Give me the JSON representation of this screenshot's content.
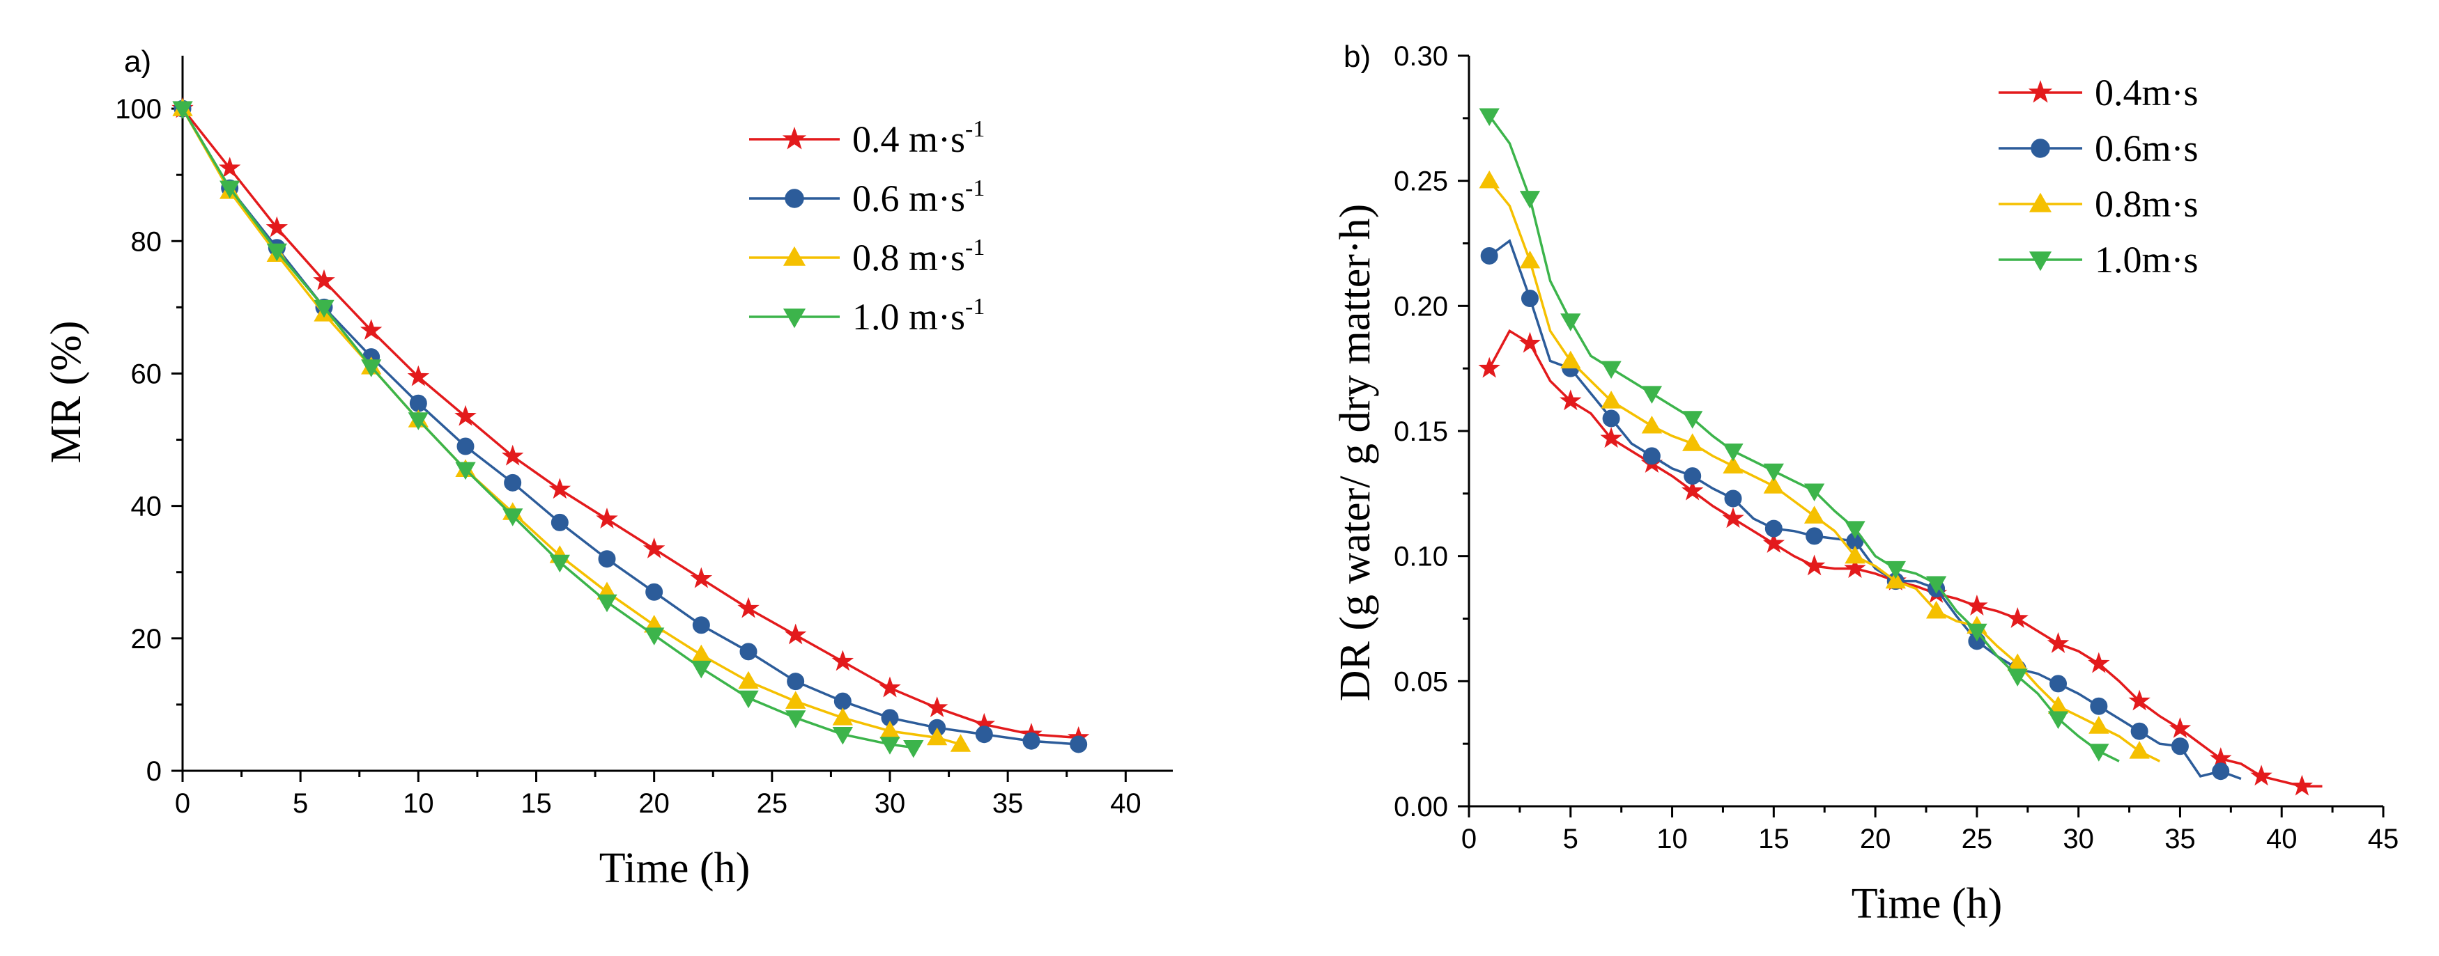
{
  "chart_data": [
    {
      "type": "line",
      "panel_label": "a)",
      "xlabel": "Time (h)",
      "ylabel": "MR (%)",
      "xlim": [
        0,
        42
      ],
      "ylim": [
        0,
        108
      ],
      "xticks": [
        0,
        5,
        10,
        15,
        20,
        25,
        30,
        35,
        40
      ],
      "yticks": [
        0,
        20,
        40,
        60,
        80,
        100
      ],
      "legend_position": "top-right",
      "series": [
        {
          "name": "0.4 m·s",
          "sup": "-1",
          "color": "#e31a1c",
          "marker": "star",
          "x": [
            0,
            2,
            4,
            6,
            8,
            10,
            12,
            14,
            16,
            18,
            20,
            22,
            24,
            26,
            28,
            30,
            32,
            34,
            36,
            38
          ],
          "y": [
            100,
            91,
            82,
            74,
            66.5,
            59.5,
            53.5,
            47.5,
            42.5,
            38,
            33.5,
            29,
            24.5,
            20.5,
            16.5,
            12.5,
            9.5,
            7,
            5.5,
            5
          ]
        },
        {
          "name": "0.6 m·s",
          "sup": "-1",
          "color": "#2c5c9a",
          "marker": "circle",
          "x": [
            0,
            2,
            4,
            6,
            8,
            10,
            12,
            14,
            16,
            18,
            20,
            22,
            24,
            26,
            28,
            30,
            32,
            34,
            36,
            38
          ],
          "y": [
            100,
            88,
            79,
            70,
            62.5,
            55.5,
            49,
            43.5,
            37.5,
            32,
            27,
            22,
            18,
            13.5,
            10.5,
            8,
            6.5,
            5.5,
            4.5,
            4
          ]
        },
        {
          "name": "0.8 m·s",
          "sup": "-1",
          "color": "#f5c000",
          "marker": "triangle-up",
          "x": [
            0,
            2,
            4,
            6,
            8,
            10,
            12,
            14,
            16,
            18,
            20,
            22,
            24,
            26,
            28,
            30,
            32,
            33
          ],
          "y": [
            100,
            87.5,
            78,
            69,
            61,
            53,
            45.5,
            39,
            32.5,
            27,
            22,
            17.5,
            13.5,
            10.5,
            8,
            6,
            5,
            4
          ]
        },
        {
          "name": "1.0 m·s",
          "sup": "-1",
          "color": "#3cb44b",
          "marker": "triangle-down",
          "x": [
            0,
            2,
            4,
            6,
            8,
            10,
            12,
            14,
            16,
            18,
            20,
            22,
            24,
            26,
            28,
            30,
            31
          ],
          "y": [
            100,
            88,
            78.5,
            70,
            61,
            53,
            45.5,
            38.5,
            31.5,
            25.5,
            20.5,
            15.5,
            11,
            8,
            5.5,
            4,
            3.5
          ]
        }
      ]
    },
    {
      "type": "line",
      "panel_label": "b)",
      "xlabel": "Time (h)",
      "ylabel": "DR (g water/ g dry matter·h)",
      "xlim": [
        0,
        45
      ],
      "ylim": [
        0,
        0.3
      ],
      "xticks": [
        0,
        5,
        10,
        15,
        20,
        25,
        30,
        35,
        40,
        45
      ],
      "yticks": [
        "0.00",
        "0.05",
        "0.10",
        "0.15",
        "0.20",
        "0.25",
        "0.30"
      ],
      "legend_position": "top-right",
      "series": [
        {
          "name": "0.4m·s",
          "color": "#e31a1c",
          "marker": "star",
          "x": [
            1,
            2,
            3,
            4,
            5,
            6,
            7,
            8,
            9,
            10,
            11,
            12,
            13,
            14,
            15,
            16,
            17,
            18,
            19,
            20,
            21,
            22,
            23,
            24,
            25,
            26,
            27,
            28,
            29,
            30,
            31,
            32,
            33,
            34,
            35,
            36,
            37,
            38,
            39,
            40,
            41,
            42
          ],
          "y": [
            0.175,
            0.19,
            0.185,
            0.17,
            0.162,
            0.157,
            0.147,
            0.142,
            0.137,
            0.132,
            0.126,
            0.12,
            0.115,
            0.11,
            0.105,
            0.1,
            0.096,
            0.095,
            0.095,
            0.093,
            0.09,
            0.088,
            0.085,
            0.083,
            0.08,
            0.078,
            0.075,
            0.07,
            0.065,
            0.062,
            0.057,
            0.05,
            0.042,
            0.036,
            0.031,
            0.025,
            0.019,
            0.017,
            0.012,
            0.01,
            0.008,
            0.008
          ]
        },
        {
          "name": "0.6m·s",
          "color": "#2c5c9a",
          "marker": "circle",
          "x": [
            1,
            2,
            3,
            4,
            5,
            6,
            7,
            8,
            9,
            10,
            11,
            12,
            13,
            14,
            15,
            16,
            17,
            18,
            19,
            20,
            21,
            22,
            23,
            24,
            25,
            26,
            27,
            28,
            29,
            30,
            31,
            32,
            33,
            34,
            35,
            36,
            37,
            38
          ],
          "y": [
            0.22,
            0.226,
            0.203,
            0.178,
            0.175,
            0.165,
            0.155,
            0.145,
            0.14,
            0.135,
            0.132,
            0.127,
            0.123,
            0.115,
            0.111,
            0.11,
            0.108,
            0.107,
            0.106,
            0.095,
            0.09,
            0.09,
            0.087,
            0.076,
            0.066,
            0.06,
            0.055,
            0.053,
            0.049,
            0.045,
            0.04,
            0.035,
            0.03,
            0.025,
            0.024,
            0.012,
            0.014,
            0.011
          ]
        },
        {
          "name": "0.8m·s",
          "color": "#f5c000",
          "marker": "triangle-up",
          "x": [
            1,
            2,
            3,
            4,
            5,
            6,
            7,
            8,
            9,
            10,
            11,
            12,
            13,
            14,
            15,
            16,
            17,
            18,
            19,
            20,
            21,
            22,
            23,
            24,
            25,
            26,
            27,
            28,
            29,
            30,
            31,
            32,
            33,
            34
          ],
          "y": [
            0.25,
            0.24,
            0.218,
            0.19,
            0.178,
            0.17,
            0.162,
            0.157,
            0.152,
            0.148,
            0.145,
            0.14,
            0.136,
            0.132,
            0.128,
            0.122,
            0.116,
            0.11,
            0.1,
            0.096,
            0.09,
            0.087,
            0.078,
            0.074,
            0.072,
            0.064,
            0.057,
            0.048,
            0.04,
            0.036,
            0.032,
            0.028,
            0.022,
            0.018
          ]
        },
        {
          "name": "1.0m·s",
          "color": "#3cb44b",
          "marker": "triangle-down",
          "x": [
            1,
            2,
            3,
            4,
            5,
            6,
            7,
            8,
            9,
            10,
            11,
            12,
            13,
            14,
            15,
            16,
            17,
            18,
            19,
            20,
            21,
            22,
            23,
            24,
            25,
            26,
            27,
            28,
            29,
            30,
            31,
            32
          ],
          "y": [
            0.276,
            0.265,
            0.243,
            0.21,
            0.194,
            0.18,
            0.175,
            0.17,
            0.165,
            0.16,
            0.155,
            0.148,
            0.142,
            0.138,
            0.134,
            0.13,
            0.126,
            0.118,
            0.111,
            0.1,
            0.095,
            0.093,
            0.089,
            0.078,
            0.07,
            0.06,
            0.052,
            0.045,
            0.035,
            0.028,
            0.022,
            0.018
          ]
        }
      ]
    }
  ]
}
